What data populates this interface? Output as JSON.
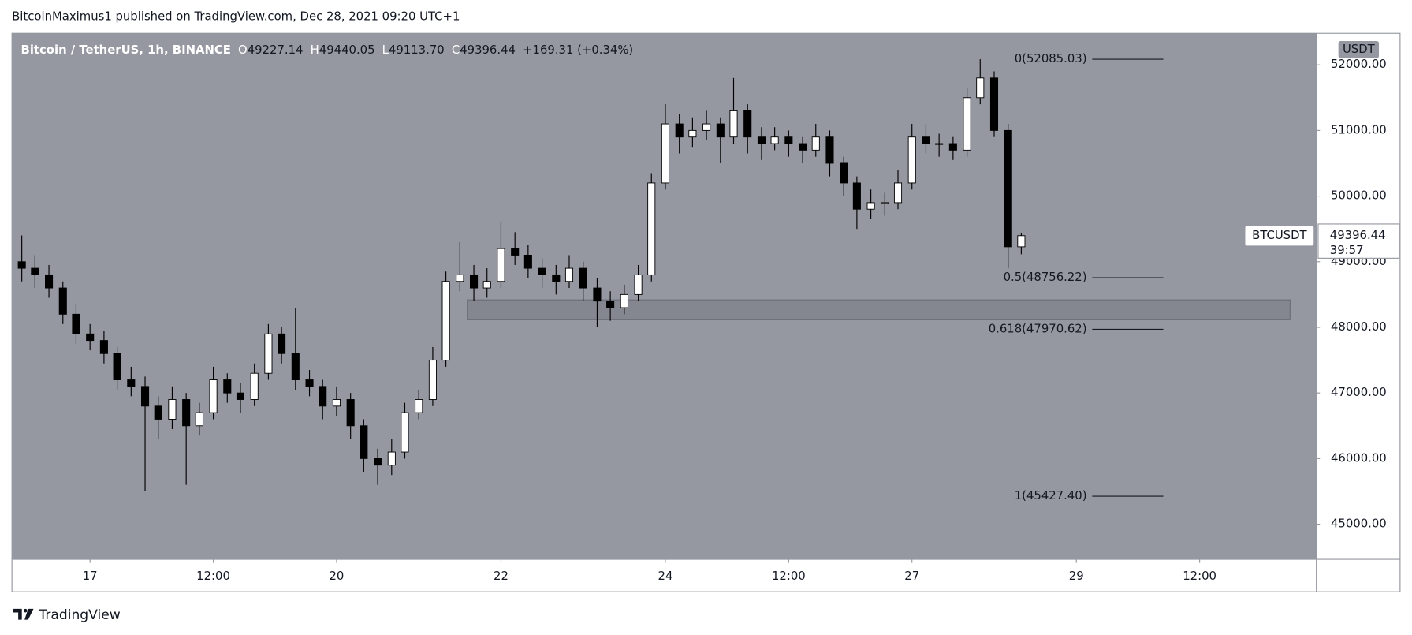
{
  "page": {
    "publisher": "BitcoinMaximus1 published on TradingView.com, Dec 28, 2021 09:20 UTC+1",
    "brand": "TradingView"
  },
  "header": {
    "symbol": "Bitcoin / TetherUS, 1h, BINANCE",
    "o_label": "O",
    "o": "49227.14",
    "h_label": "H",
    "h": "49440.05",
    "l_label": "L",
    "l": "49113.70",
    "c_label": "C",
    "c": "49396.44",
    "change": "+169.31 (+0.34%)"
  },
  "chart_data": {
    "type": "candlestick",
    "currency": "USDT",
    "up_color": "#ffffff",
    "down_color": "#000000",
    "wick_color": "#000000",
    "background": "#9598a1",
    "x": [
      16.17,
      16.33,
      16.5,
      16.67,
      16.83,
      17.0,
      17.17,
      17.33,
      17.5,
      17.67,
      17.83,
      18.0,
      18.17,
      18.33,
      18.5,
      18.67,
      18.83,
      19.0,
      19.17,
      19.33,
      19.5,
      19.67,
      19.83,
      20.0,
      20.17,
      20.33,
      20.5,
      20.67,
      20.83,
      21.0,
      21.17,
      21.33,
      21.5,
      21.67,
      21.83,
      22.0,
      22.17,
      22.33,
      22.5,
      22.67,
      22.83,
      23.0,
      23.17,
      23.33,
      23.5,
      23.67,
      23.83,
      24.0,
      24.17,
      24.33,
      24.5,
      24.67,
      24.83,
      25.0,
      25.17,
      25.33,
      25.5,
      25.67,
      25.83,
      26.0,
      26.17,
      26.33,
      26.5,
      26.67,
      26.83,
      27.0,
      27.17,
      27.33,
      27.5,
      27.67,
      27.83,
      28.0,
      28.17,
      28.33
    ],
    "open": [
      49000,
      48900,
      48800,
      48600,
      48200,
      47900,
      47800,
      47600,
      47200,
      47100,
      46800,
      46600,
      46900,
      46500,
      46700,
      47200,
      47000,
      46900,
      47300,
      47900,
      47600,
      47200,
      47100,
      46800,
      46900,
      46500,
      46000,
      45900,
      46100,
      46700,
      46900,
      47500,
      48700,
      48800,
      48600,
      48700,
      49200,
      49100,
      48900,
      48800,
      48700,
      48900,
      48600,
      48400,
      48300,
      48500,
      48800,
      50200,
      51100,
      50900,
      51000,
      51100,
      50900,
      51300,
      50900,
      50800,
      50900,
      50800,
      50700,
      50900,
      50500,
      50200,
      49800,
      49900,
      49900,
      50200,
      50900,
      50800,
      50800,
      50700,
      51500,
      51800,
      51000,
      49227.14
    ],
    "high": [
      49400,
      49100,
      48950,
      48700,
      48350,
      48050,
      47950,
      47700,
      47400,
      47250,
      46950,
      47100,
      47000,
      46850,
      47400,
      47300,
      47150,
      47450,
      48050,
      48000,
      48300,
      47350,
      47200,
      47100,
      47000,
      46600,
      46150,
      46300,
      46850,
      47050,
      47700,
      48850,
      49300,
      48950,
      48900,
      49600,
      49450,
      49250,
      49050,
      48950,
      49100,
      49000,
      48750,
      48550,
      48650,
      48950,
      50350,
      51400,
      51250,
      51200,
      51300,
      51200,
      51800,
      51400,
      51050,
      51050,
      51000,
      50900,
      51100,
      51000,
      50600,
      50300,
      50100,
      50050,
      50400,
      51100,
      51100,
      50950,
      50900,
      51650,
      52085.03,
      51900,
      51100,
      49440.05
    ],
    "low": [
      48700,
      48600,
      48450,
      48050,
      47750,
      47650,
      47450,
      47050,
      46950,
      45500,
      46300,
      46450,
      45600,
      46350,
      46600,
      46850,
      46700,
      46800,
      47200,
      47450,
      47050,
      46950,
      46600,
      46650,
      46300,
      45800,
      45600,
      45750,
      46000,
      46600,
      46800,
      47400,
      48550,
      48400,
      48450,
      48600,
      48950,
      48750,
      48600,
      48500,
      48600,
      48400,
      48000,
      48100,
      48200,
      48400,
      48700,
      50100,
      50650,
      50750,
      50850,
      50500,
      50800,
      50650,
      50550,
      50700,
      50600,
      50500,
      50600,
      50300,
      50000,
      49500,
      49650,
      49700,
      49800,
      50100,
      50650,
      50600,
      50550,
      50600,
      51400,
      50900,
      48900,
      49113.7
    ],
    "close": [
      48900,
      48800,
      48600,
      48200,
      47900,
      47800,
      47600,
      47200,
      47100,
      46800,
      46600,
      46900,
      46500,
      46700,
      47200,
      47000,
      46900,
      47300,
      47900,
      47600,
      47200,
      47100,
      46800,
      46900,
      46500,
      46000,
      45900,
      46100,
      46700,
      46900,
      47500,
      48700,
      48800,
      48600,
      48700,
      49200,
      49100,
      48900,
      48800,
      48700,
      48900,
      48600,
      48400,
      48300,
      48500,
      48800,
      50200,
      51100,
      50900,
      51000,
      51100,
      50900,
      51300,
      50900,
      50800,
      50900,
      50800,
      50700,
      50900,
      50500,
      50200,
      49800,
      49900,
      49900,
      50200,
      50900,
      50800,
      50800,
      50700,
      51500,
      51800,
      51000,
      49227.14,
      49396.44
    ],
    "xlim": [
      16.05,
      31.92
    ],
    "ylim": [
      44465,
      52480
    ],
    "xticks": [
      {
        "value": 17,
        "label": "17"
      },
      {
        "value": 18.5,
        "label": "12:00"
      },
      {
        "value": 20,
        "label": "20"
      },
      {
        "value": 22,
        "label": "22"
      },
      {
        "value": 24,
        "label": "24"
      },
      {
        "value": 25.5,
        "label": "12:00"
      },
      {
        "value": 27,
        "label": "27"
      },
      {
        "value": 29,
        "label": "29"
      },
      {
        "value": 30.5,
        "label": "12:00"
      }
    ],
    "yticks": [
      {
        "value": 45000,
        "label": "45000.00"
      },
      {
        "value": 46000,
        "label": "46000.00"
      },
      {
        "value": 47000,
        "label": "47000.00"
      },
      {
        "value": 48000,
        "label": "48000.00"
      },
      {
        "value": 49000,
        "label": "49000.00"
      },
      {
        "value": 50000,
        "label": "50000.00"
      },
      {
        "value": 51000,
        "label": "51000.00"
      },
      {
        "value": 52000,
        "label": "52000.00"
      }
    ],
    "fib_levels": [
      {
        "value": 52085.03,
        "label": "0(52085.03)"
      },
      {
        "value": 48756.22,
        "label": "0.5(48756.22)"
      },
      {
        "value": 47970.62,
        "label": "0.618(47970.62)"
      },
      {
        "value": 45427.4,
        "label": "1(45427.40)"
      }
    ],
    "zone": {
      "x": [
        21.59,
        31.6
      ],
      "y": [
        48116,
        48418
      ],
      "color": "#80838c"
    },
    "symbol_tag": "BTCUSDT",
    "last_price": {
      "value": 49396.44,
      "label": "49396.44"
    },
    "countdown": "39:57"
  }
}
